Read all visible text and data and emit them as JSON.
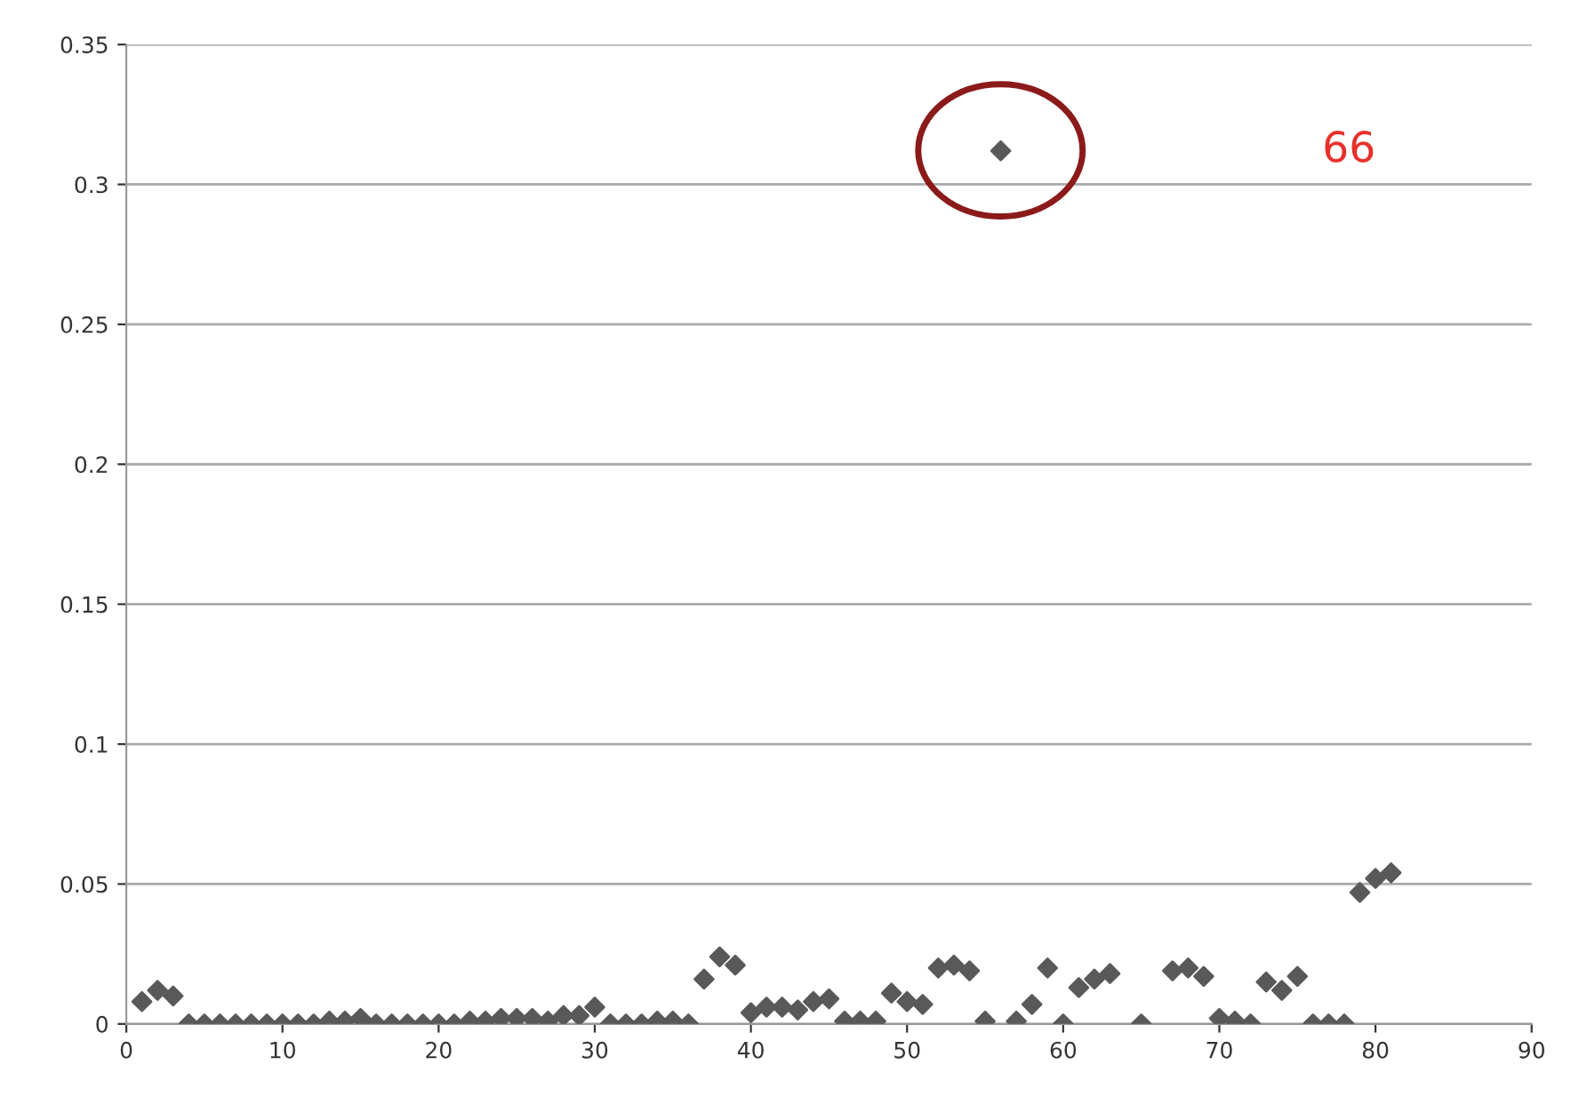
{
  "chart_data": {
    "type": "scatter",
    "marker": "diamond",
    "grid": "y",
    "legend": false,
    "xlim": [
      0,
      90
    ],
    "xticks": [
      0,
      10,
      20,
      30,
      40,
      50,
      60,
      70,
      80,
      90
    ],
    "ylim": [
      0,
      0.35
    ],
    "yticks": [
      0,
      0.05,
      0.1,
      0.15,
      0.2,
      0.25,
      0.3,
      0.35
    ],
    "series": [
      {
        "color": "#595959",
        "x": [
          1,
          2,
          3,
          4,
          5,
          6,
          7,
          8,
          9,
          10,
          11,
          12,
          13,
          14,
          15,
          16,
          17,
          18,
          19,
          20,
          21,
          22,
          23,
          24,
          25,
          26,
          27,
          28,
          29,
          30,
          31,
          32,
          33,
          34,
          35,
          36,
          37,
          38,
          39,
          40,
          41,
          42,
          43,
          44,
          45,
          46,
          47,
          48,
          49,
          50,
          51,
          52,
          53,
          54,
          55,
          56,
          57,
          58,
          59,
          60,
          61,
          62,
          63,
          65,
          67,
          68,
          69,
          70,
          71,
          72,
          73,
          74,
          75,
          76,
          77,
          78,
          79,
          80,
          81
        ],
        "values": [
          0.008,
          0.012,
          0.01,
          0,
          0,
          0,
          0,
          0,
          0,
          0,
          0,
          0,
          0.001,
          0.001,
          0.002,
          0,
          0,
          0,
          0,
          0,
          0,
          0.001,
          0.001,
          0.002,
          0.002,
          0.002,
          0.001,
          0.003,
          0.003,
          0.006,
          0,
          0,
          0,
          0.001,
          0.001,
          0,
          0.016,
          0.024,
          0.021,
          0.004,
          0.006,
          0.006,
          0.005,
          0.008,
          0.009,
          0.001,
          0.001,
          0.001,
          0.011,
          0.008,
          0.007,
          0.02,
          0.021,
          0.019,
          0.001,
          0.312,
          0.001,
          0.007,
          0.02,
          0,
          0.013,
          0.016,
          0.018,
          0,
          0.019,
          0.02,
          0.017,
          0.002,
          0.001,
          0,
          0.015,
          0.012,
          0.017,
          0,
          0,
          0,
          0.047,
          0.052,
          0.054
        ]
      }
    ],
    "annotations": [
      "66"
    ]
  }
}
